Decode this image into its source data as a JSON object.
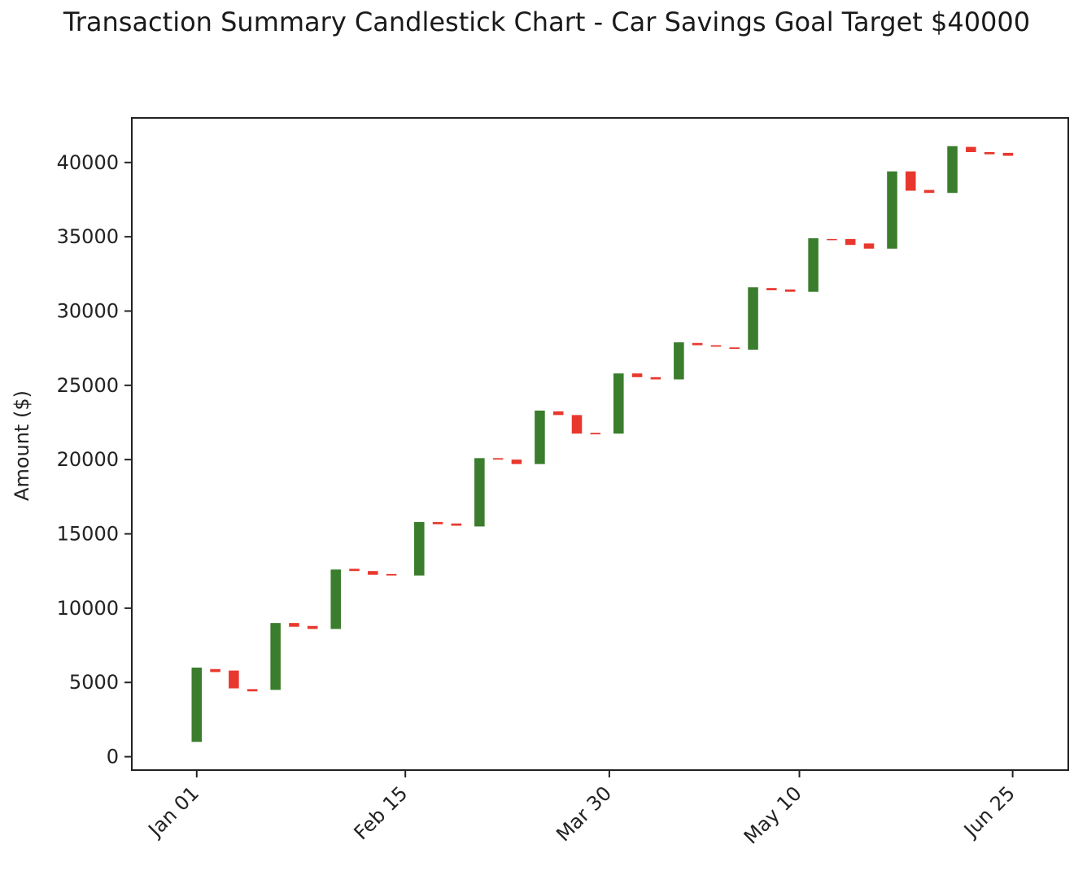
{
  "chart_data": {
    "type": "candlestick",
    "title": "Transaction Summary Candlestick Chart - Car Savings Goal Target $40000",
    "xlabel": "",
    "ylabel": "Amount ($)",
    "x_tick_labels": [
      "Jan 01",
      "Feb 15",
      "Mar 30",
      "May 10",
      "Jun 25"
    ],
    "x_tick_dates": [
      "2024-01-01",
      "2024-02-15",
      "2024-03-30",
      "2024-05-10",
      "2024-06-25"
    ],
    "y_ticks": [
      0,
      5000,
      10000,
      15000,
      20000,
      25000,
      30000,
      35000,
      40000
    ],
    "xlim": [
      "2023-12-18",
      "2024-07-07"
    ],
    "ylim": [
      -900,
      43000
    ],
    "grid": false,
    "colors": {
      "up": "#3a7d2c",
      "down": "#e8382e"
    },
    "candles": [
      {
        "date": "2024-01-01",
        "open": 1000,
        "close": 6000
      },
      {
        "date": "2024-01-05",
        "open": 5900,
        "close": 5700
      },
      {
        "date": "2024-01-09",
        "open": 5800,
        "close": 4600
      },
      {
        "date": "2024-01-13",
        "open": 4550,
        "close": 4400
      },
      {
        "date": "2024-01-18",
        "open": 4500,
        "close": 9000
      },
      {
        "date": "2024-01-22",
        "open": 9000,
        "close": 8750
      },
      {
        "date": "2024-01-26",
        "open": 8800,
        "close": 8600
      },
      {
        "date": "2024-01-31",
        "open": 8600,
        "close": 12600
      },
      {
        "date": "2024-02-04",
        "open": 12650,
        "close": 12500
      },
      {
        "date": "2024-02-08",
        "open": 12500,
        "close": 12250
      },
      {
        "date": "2024-02-12",
        "open": 12300,
        "close": 12200
      },
      {
        "date": "2024-02-18",
        "open": 12200,
        "close": 15800
      },
      {
        "date": "2024-02-22",
        "open": 15800,
        "close": 15650
      },
      {
        "date": "2024-02-26",
        "open": 15700,
        "close": 15550
      },
      {
        "date": "2024-03-02",
        "open": 15500,
        "close": 20100
      },
      {
        "date": "2024-03-06",
        "open": 20100,
        "close": 20000
      },
      {
        "date": "2024-03-10",
        "open": 20000,
        "close": 19700
      },
      {
        "date": "2024-03-15",
        "open": 19700,
        "close": 23300
      },
      {
        "date": "2024-03-19",
        "open": 23250,
        "close": 23000
      },
      {
        "date": "2024-03-23",
        "open": 23000,
        "close": 21750
      },
      {
        "date": "2024-03-27",
        "open": 21800,
        "close": 21700
      },
      {
        "date": "2024-04-01",
        "open": 21750,
        "close": 25800
      },
      {
        "date": "2024-04-05",
        "open": 25800,
        "close": 25550
      },
      {
        "date": "2024-04-09",
        "open": 25550,
        "close": 25400
      },
      {
        "date": "2024-04-14",
        "open": 25400,
        "close": 27900
      },
      {
        "date": "2024-04-18",
        "open": 27850,
        "close": 27700
      },
      {
        "date": "2024-04-22",
        "open": 27700,
        "close": 27600
      },
      {
        "date": "2024-04-26",
        "open": 27550,
        "close": 27450
      },
      {
        "date": "2024-04-30",
        "open": 27400,
        "close": 31600
      },
      {
        "date": "2024-05-04",
        "open": 31550,
        "close": 31400
      },
      {
        "date": "2024-05-08",
        "open": 31450,
        "close": 31300
      },
      {
        "date": "2024-05-13",
        "open": 31300,
        "close": 34900
      },
      {
        "date": "2024-05-17",
        "open": 34850,
        "close": 34800
      },
      {
        "date": "2024-05-21",
        "open": 34850,
        "close": 34450
      },
      {
        "date": "2024-05-25",
        "open": 34550,
        "close": 34200
      },
      {
        "date": "2024-05-30",
        "open": 34200,
        "close": 39400
      },
      {
        "date": "2024-06-03",
        "open": 39400,
        "close": 38100
      },
      {
        "date": "2024-06-07",
        "open": 38150,
        "close": 37950
      },
      {
        "date": "2024-06-12",
        "open": 37950,
        "close": 41100
      },
      {
        "date": "2024-06-16",
        "open": 41050,
        "close": 40700
      },
      {
        "date": "2024-06-20",
        "open": 40700,
        "close": 40550
      },
      {
        "date": "2024-06-24",
        "open": 40650,
        "close": 40450
      }
    ]
  }
}
